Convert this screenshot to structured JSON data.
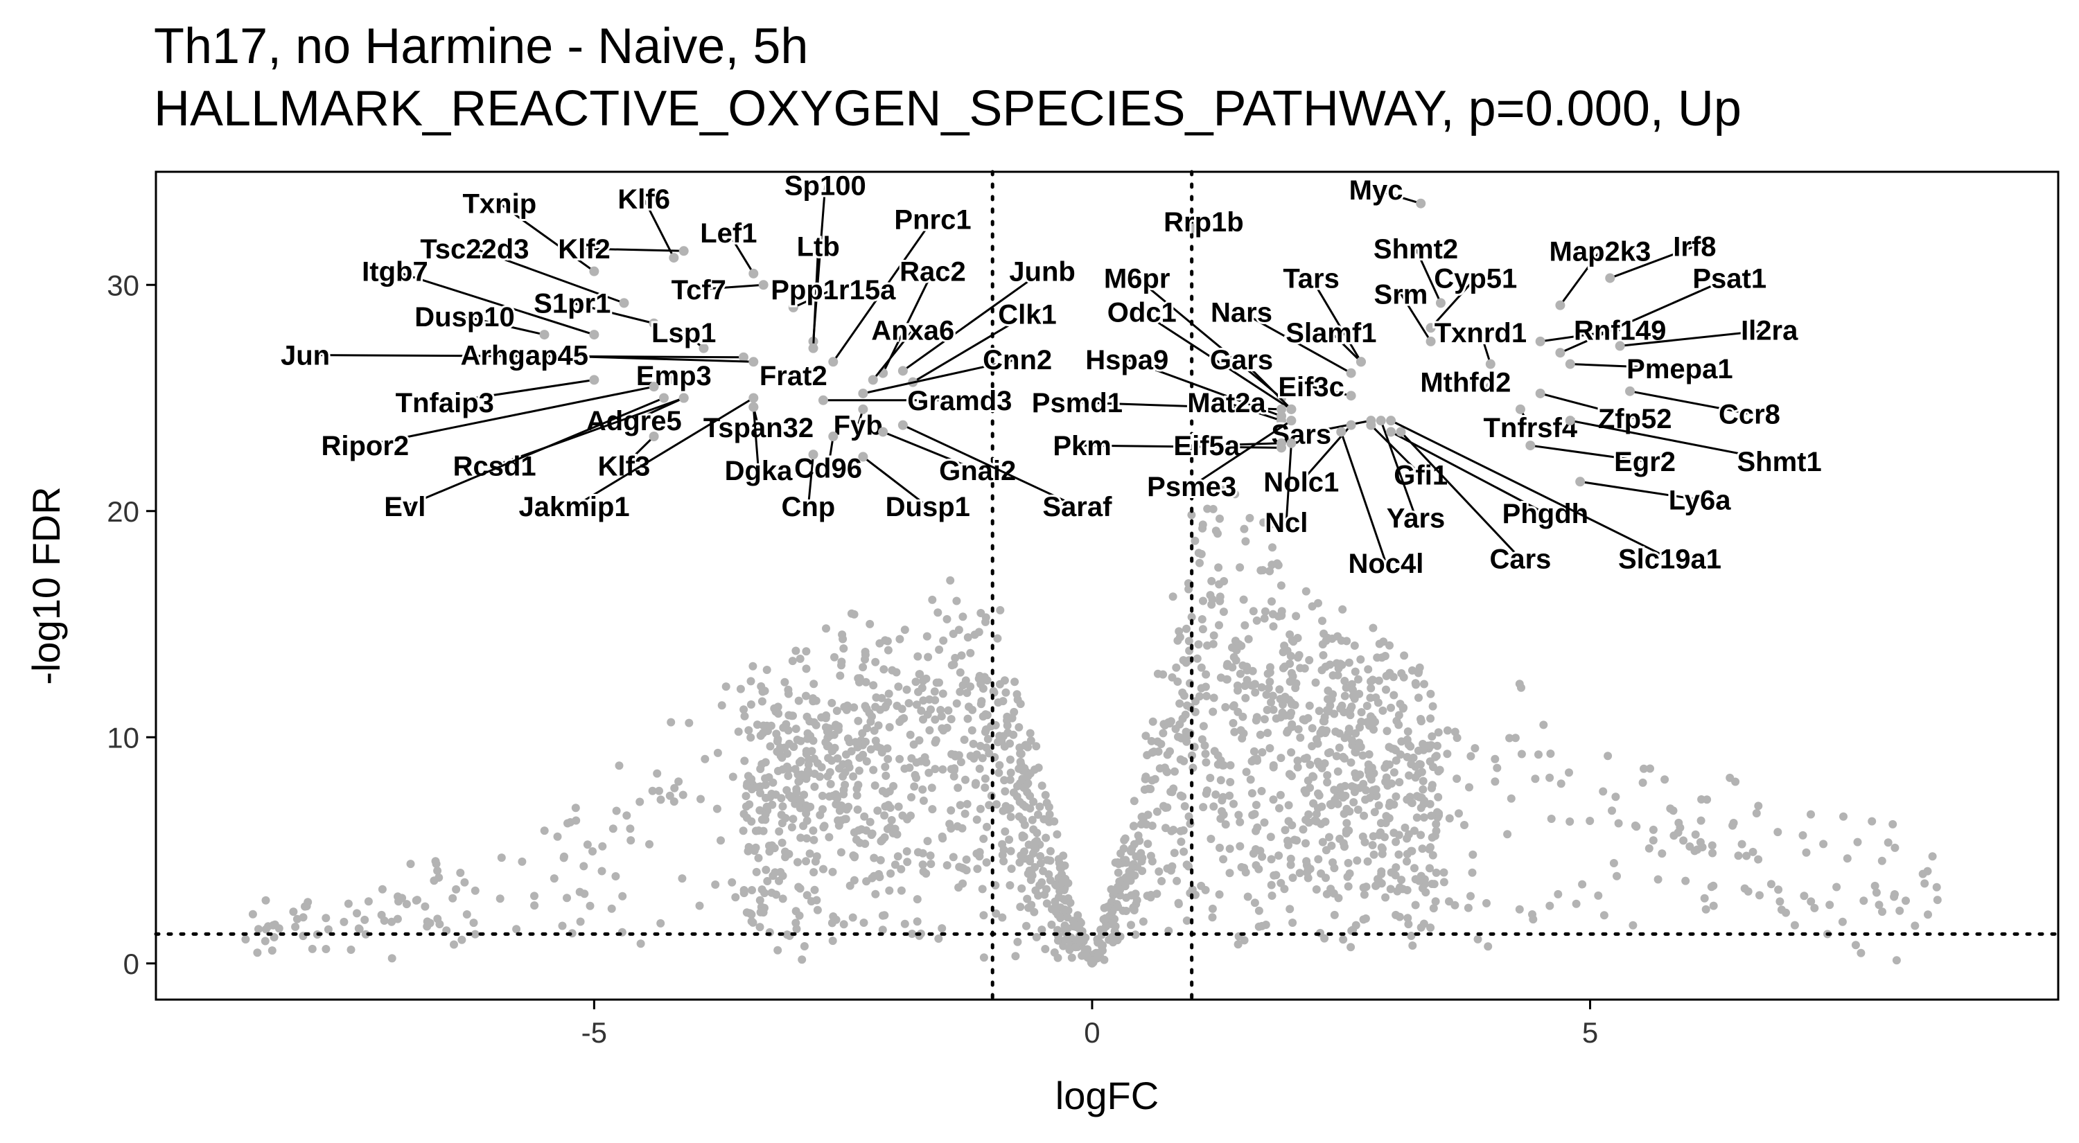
{
  "chart_data": {
    "type": "scatter",
    "title": "Th17, no Harmine - Naive, 5h",
    "subtitle": "HALLMARK_REACTIVE_OXYGEN_SPECIES_PATHWAY, p=0.000, Up",
    "xlabel": "logFC",
    "ylabel": "-log10 FDR",
    "xlim": [
      -9.4,
      9.7
    ],
    "ylim": [
      -1.6,
      35.0
    ],
    "xticks": [
      -5,
      0,
      5
    ],
    "xtick_labels": [
      "-5",
      "0",
      "5"
    ],
    "yticks": [
      0,
      10,
      20,
      30
    ],
    "ytick_labels": [
      "0",
      "10",
      "20",
      "30"
    ],
    "grid": false,
    "thresholds": {
      "logFC": [
        -1,
        1
      ],
      "neg_log10_fdr": 1.3
    },
    "point_color": "#b3b3b3",
    "label_color": "#000000",
    "labeled_genes": [
      {
        "gene": "Txnip",
        "x": -5.0,
        "y": 30.6,
        "lx": -5.95,
        "ly": 33.6
      },
      {
        "gene": "Klf6",
        "x": -4.2,
        "y": 31.2,
        "lx": -4.5,
        "ly": 33.8
      },
      {
        "gene": "Sp100",
        "x": -2.8,
        "y": 27.5,
        "lx": -2.68,
        "ly": 34.4
      },
      {
        "gene": "Lef1",
        "x": -3.4,
        "y": 30.5,
        "lx": -3.65,
        "ly": 32.3
      },
      {
        "gene": "Klf2",
        "x": -4.1,
        "y": 31.5,
        "lx": -5.1,
        "ly": 31.6
      },
      {
        "gene": "Tsc22d3",
        "x": -4.7,
        "y": 29.2,
        "lx": -6.2,
        "ly": 31.6
      },
      {
        "gene": "Ltb",
        "x": -2.8,
        "y": 27.2,
        "lx": -2.75,
        "ly": 31.7
      },
      {
        "gene": "Pnrc1",
        "x": -2.6,
        "y": 26.6,
        "lx": -1.6,
        "ly": 32.9
      },
      {
        "gene": "Itgb7",
        "x": -5.0,
        "y": 27.8,
        "lx": -7.0,
        "ly": 30.6
      },
      {
        "gene": "Tcf7",
        "x": -3.3,
        "y": 30.0,
        "lx": -3.95,
        "ly": 29.8
      },
      {
        "gene": "Ppp1r15a",
        "x": -3.0,
        "y": 29.0,
        "lx": -2.6,
        "ly": 29.8
      },
      {
        "gene": "Rac2",
        "x": -2.1,
        "y": 26.1,
        "lx": -1.6,
        "ly": 30.6
      },
      {
        "gene": "Junb",
        "x": -1.9,
        "y": 26.2,
        "lx": -0.5,
        "ly": 30.6
      },
      {
        "gene": "S1pr1",
        "x": -4.4,
        "y": 28.3,
        "lx": -5.22,
        "ly": 29.2
      },
      {
        "gene": "Dusp10",
        "x": -5.5,
        "y": 27.8,
        "lx": -6.3,
        "ly": 28.6
      },
      {
        "gene": "Lsp1",
        "x": -3.9,
        "y": 27.2,
        "lx": -4.1,
        "ly": 27.9
      },
      {
        "gene": "Anxa6",
        "x": -2.2,
        "y": 25.8,
        "lx": -1.8,
        "ly": 28.0
      },
      {
        "gene": "Clk1",
        "x": -1.8,
        "y": 25.7,
        "lx": -0.65,
        "ly": 28.7
      },
      {
        "gene": "Jun",
        "x": -3.5,
        "y": 26.8,
        "lx": -7.9,
        "ly": 26.9
      },
      {
        "gene": "Arhgap45",
        "x": -3.4,
        "y": 26.6,
        "lx": -5.7,
        "ly": 26.9
      },
      {
        "gene": "Frat2",
        "x": -3.0,
        "y": 26.0,
        "lx": -3.0,
        "ly": 26.0
      },
      {
        "gene": "Cnn2",
        "x": -2.3,
        "y": 25.2,
        "lx": -0.75,
        "ly": 26.7
      },
      {
        "gene": "Emp3",
        "x": -4.2,
        "y": 25.8,
        "lx": -4.2,
        "ly": 26.0
      },
      {
        "gene": "Tnfaip3",
        "x": -5.0,
        "y": 25.8,
        "lx": -6.5,
        "ly": 24.8
      },
      {
        "gene": "Gramd3",
        "x": -2.7,
        "y": 24.9,
        "lx": -1.33,
        "ly": 24.9
      },
      {
        "gene": "Adgre5",
        "x": -4.1,
        "y": 25.0,
        "lx": -4.6,
        "ly": 24.0
      },
      {
        "gene": "Tspan32",
        "x": -3.4,
        "y": 24.6,
        "lx": -3.35,
        "ly": 23.7
      },
      {
        "gene": "Fyb",
        "x": -2.3,
        "y": 24.5,
        "lx": -2.35,
        "ly": 23.8
      },
      {
        "gene": "Ripor2",
        "x": -4.4,
        "y": 25.5,
        "lx": -7.3,
        "ly": 22.9
      },
      {
        "gene": "Rcsd1",
        "x": -4.1,
        "y": 25.0,
        "lx": -6.0,
        "ly": 22.0
      },
      {
        "gene": "Klf3",
        "x": -4.4,
        "y": 23.3,
        "lx": -4.7,
        "ly": 22.0
      },
      {
        "gene": "Dgka",
        "x": -3.4,
        "y": 24.6,
        "lx": -3.35,
        "ly": 21.8
      },
      {
        "gene": "Cd96",
        "x": -2.6,
        "y": 23.3,
        "lx": -2.65,
        "ly": 21.9
      },
      {
        "gene": "Gnai2",
        "x": -2.1,
        "y": 23.5,
        "lx": -1.15,
        "ly": 21.8
      },
      {
        "gene": "Evl",
        "x": -4.3,
        "y": 25.0,
        "lx": -6.9,
        "ly": 20.2
      },
      {
        "gene": "Jakmip1",
        "x": -3.4,
        "y": 25.0,
        "lx": -5.2,
        "ly": 20.2
      },
      {
        "gene": "Cnp",
        "x": -2.8,
        "y": 22.5,
        "lx": -2.85,
        "ly": 20.2
      },
      {
        "gene": "Dusp1",
        "x": -2.3,
        "y": 22.4,
        "lx": -1.65,
        "ly": 20.2
      },
      {
        "gene": "Saraf",
        "x": -1.9,
        "y": 23.8,
        "lx": -0.15,
        "ly": 20.2
      },
      {
        "gene": "Rrp1b",
        "x": 1.0,
        "y": 32.5,
        "lx": 1.12,
        "ly": 32.8
      },
      {
        "gene": "Myc",
        "x": 3.3,
        "y": 33.6,
        "lx": 2.85,
        "ly": 34.2
      },
      {
        "gene": "Shmt2",
        "x": 3.5,
        "y": 29.2,
        "lx": 3.25,
        "ly": 31.6
      },
      {
        "gene": "Map2k3",
        "x": 4.7,
        "y": 29.1,
        "lx": 5.1,
        "ly": 31.5
      },
      {
        "gene": "Irf8",
        "x": 5.2,
        "y": 30.3,
        "lx": 6.05,
        "ly": 31.7
      },
      {
        "gene": "M6pr",
        "x": 1.9,
        "y": 25.0,
        "lx": 0.45,
        "ly": 30.3
      },
      {
        "gene": "Tars",
        "x": 2.7,
        "y": 26.6,
        "lx": 2.2,
        "ly": 30.3
      },
      {
        "gene": "Cyp51",
        "x": 3.4,
        "y": 28.1,
        "lx": 3.85,
        "ly": 30.3
      },
      {
        "gene": "Psat1",
        "x": 4.7,
        "y": 27.0,
        "lx": 6.4,
        "ly": 30.3
      },
      {
        "gene": "Srm",
        "x": 3.4,
        "y": 27.5,
        "lx": 3.1,
        "ly": 29.6
      },
      {
        "gene": "Odc1",
        "x": 2.0,
        "y": 24.5,
        "lx": 0.5,
        "ly": 28.8
      },
      {
        "gene": "Nars",
        "x": 2.6,
        "y": 26.1,
        "lx": 1.5,
        "ly": 28.8
      },
      {
        "gene": "Slamf1",
        "x": 2.7,
        "y": 26.6,
        "lx": 2.4,
        "ly": 27.9
      },
      {
        "gene": "Txnrd1",
        "x": 4.0,
        "y": 26.5,
        "lx": 3.9,
        "ly": 27.9
      },
      {
        "gene": "Rnf149",
        "x": 4.5,
        "y": 27.5,
        "lx": 5.3,
        "ly": 28.0
      },
      {
        "gene": "Il2ra",
        "x": 5.3,
        "y": 27.3,
        "lx": 6.8,
        "ly": 28.0
      },
      {
        "gene": "Hspa9",
        "x": 1.9,
        "y": 24.2,
        "lx": 0.35,
        "ly": 26.7
      },
      {
        "gene": "Gars",
        "x": 2.0,
        "y": 24.5,
        "lx": 1.5,
        "ly": 26.7
      },
      {
        "gene": "Pmepa1",
        "x": 4.8,
        "y": 26.5,
        "lx": 5.9,
        "ly": 26.3
      },
      {
        "gene": "Mthfd2",
        "x": 4.0,
        "y": 25.5,
        "lx": 3.75,
        "ly": 25.7
      },
      {
        "gene": "Eif3c",
        "x": 2.6,
        "y": 25.1,
        "lx": 2.2,
        "ly": 25.5
      },
      {
        "gene": "Psmd1",
        "x": 1.9,
        "y": 24.5,
        "lx": -0.15,
        "ly": 24.8
      },
      {
        "gene": "Mat2a",
        "x": 1.9,
        "y": 24.0,
        "lx": 1.35,
        "ly": 24.8
      },
      {
        "gene": "Zfp52",
        "x": 4.5,
        "y": 25.2,
        "lx": 5.45,
        "ly": 24.1
      },
      {
        "gene": "Ccr8",
        "x": 5.4,
        "y": 25.3,
        "lx": 6.6,
        "ly": 24.3
      },
      {
        "gene": "Tnfrsf4",
        "x": 4.3,
        "y": 24.5,
        "lx": 4.4,
        "ly": 23.7
      },
      {
        "gene": "Sars",
        "x": 2.8,
        "y": 24.0,
        "lx": 2.1,
        "ly": 23.4
      },
      {
        "gene": "Pkm",
        "x": 1.9,
        "y": 22.8,
        "lx": -0.1,
        "ly": 22.9
      },
      {
        "gene": "Eif5a",
        "x": 1.9,
        "y": 23.0,
        "lx": 1.15,
        "ly": 22.9
      },
      {
        "gene": "Egr2",
        "x": 4.4,
        "y": 22.9,
        "lx": 5.55,
        "ly": 22.2
      },
      {
        "gene": "Shmt1",
        "x": 4.8,
        "y": 24.0,
        "lx": 6.9,
        "ly": 22.2
      },
      {
        "gene": "Gfi1",
        "x": 2.8,
        "y": 23.8,
        "lx": 3.3,
        "ly": 21.6
      },
      {
        "gene": "Nolc1",
        "x": 2.6,
        "y": 23.8,
        "lx": 2.1,
        "ly": 21.3
      },
      {
        "gene": "Psme3",
        "x": 2.0,
        "y": 24.0,
        "lx": 1.0,
        "ly": 21.1
      },
      {
        "gene": "Ly6a",
        "x": 4.9,
        "y": 21.3,
        "lx": 6.1,
        "ly": 20.5
      },
      {
        "gene": "Yars",
        "x": 2.9,
        "y": 24.0,
        "lx": 3.25,
        "ly": 19.7
      },
      {
        "gene": "Phgdh",
        "x": 3.0,
        "y": 23.5,
        "lx": 4.55,
        "ly": 19.9
      },
      {
        "gene": "Ncl",
        "x": 2.0,
        "y": 23.0,
        "lx": 1.95,
        "ly": 19.5
      },
      {
        "gene": "Cars",
        "x": 3.1,
        "y": 23.5,
        "lx": 4.3,
        "ly": 17.9
      },
      {
        "gene": "Slc19a1",
        "x": 3.0,
        "y": 24.0,
        "lx": 5.8,
        "ly": 17.9
      },
      {
        "gene": "Noc4l",
        "x": 2.5,
        "y": 23.5,
        "lx": 2.95,
        "ly": 17.7
      }
    ]
  }
}
